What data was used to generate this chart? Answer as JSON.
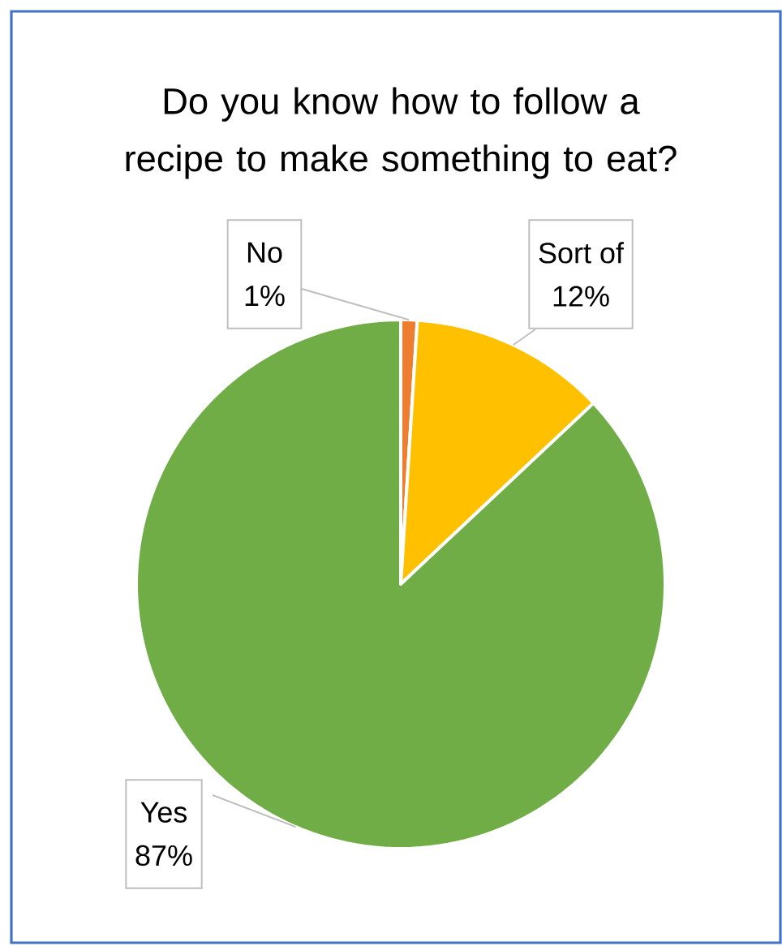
{
  "chart_data": {
    "type": "pie",
    "title": "Do you know how to follow a recipe to make something to eat?",
    "categories": [
      "No",
      "Sort of",
      "Yes"
    ],
    "values": [
      1,
      12,
      87
    ],
    "colors": [
      "#ed7d31",
      "#ffc000",
      "#70ad47"
    ],
    "value_labels": [
      "1%",
      "12%",
      "87%"
    ]
  }
}
